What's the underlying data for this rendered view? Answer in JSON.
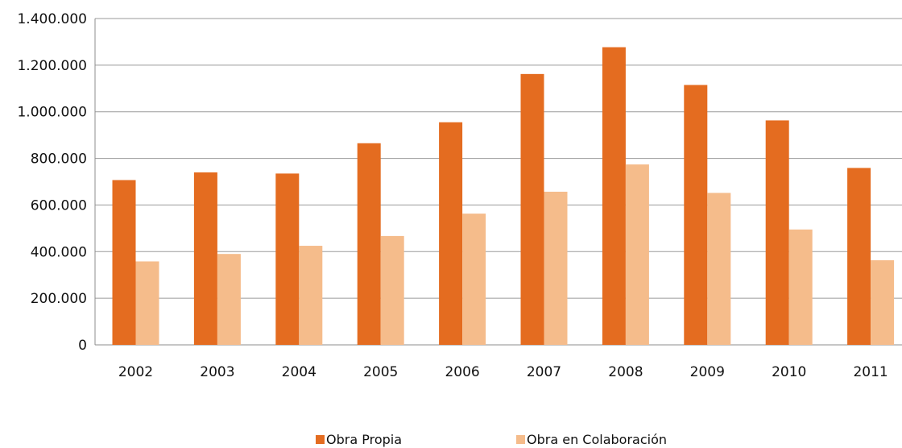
{
  "chart_data": {
    "type": "bar",
    "title": "",
    "xlabel": "",
    "ylabel": "",
    "categories": [
      "2002",
      "2003",
      "2004",
      "2005",
      "2006",
      "2007",
      "2008",
      "2009",
      "2010",
      "2011"
    ],
    "ylim": [
      0,
      1400000
    ],
    "yticks": [
      0,
      200000,
      400000,
      600000,
      800000,
      1000000,
      1200000,
      1400000
    ],
    "ytick_labels": [
      "0",
      "200.000",
      "400.000",
      "600.000",
      "800.000",
      "1.000.000",
      "1.200.000",
      "1.400.000"
    ],
    "grid": true,
    "legend_position": "bottom",
    "series": [
      {
        "name": "Obra Propia",
        "color": "#E46C20",
        "values": [
          707000,
          740000,
          735000,
          865000,
          955000,
          1162000,
          1277000,
          1115000,
          963000,
          759000
        ]
      },
      {
        "name": "Obra en Colaboración",
        "color": "#F5BC8B",
        "values": [
          358000,
          390000,
          425000,
          467000,
          563000,
          657000,
          774000,
          652000,
          495000,
          363000
        ]
      }
    ]
  }
}
